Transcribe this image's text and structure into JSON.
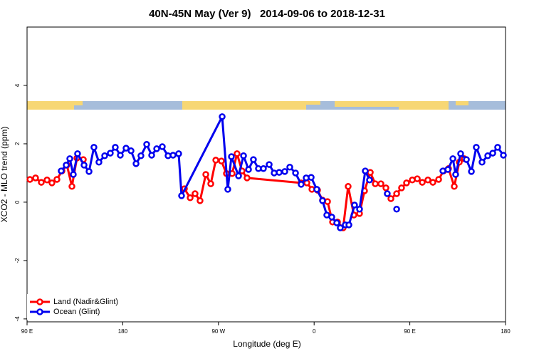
{
  "chart_data": {
    "type": "line",
    "title": "40N-45N May (Ver 9)   2014-09-06 to 2018-12-31",
    "xlabel": "Longitude (deg E)",
    "ylabel": "XCO2 - MLO trend (ppm)",
    "xlim": [
      90,
      540
    ],
    "xticks": [
      {
        "value": 90,
        "label": "90 E"
      },
      180,
      {
        "value": 270,
        "label": "90 W"
      },
      {
        "value": 360,
        "label": "0"
      },
      {
        "value": 450,
        "label": "90 E"
      },
      {
        "value": 540,
        "label": "180"
      }
    ],
    "ylim": [
      -4.1,
      6.0
    ],
    "yticks": [
      -4,
      -2,
      0,
      2,
      4
    ],
    "legend": "bottom-left",
    "series": [
      {
        "name": "Land (Nadir&Glint)",
        "color": "#ff0000",
        "x": [
          92.7,
          98.0,
          103.4,
          108.8,
          113.4,
          118.1,
          122.8,
          127.5,
          132.2,
          136.9,
          142.9,
          150,
          238.0,
          243.4,
          248.0,
          252.7,
          258.1,
          262.8,
          267.5,
          272.8,
          277.5,
          282.9,
          287.5,
          292.2,
          296.9,
          347.8,
          353.2,
          357.9,
          363.2,
          367.9,
          372.6,
          377.3,
          382.0,
          387.3,
          392.0,
          397.4,
          402.7,
          407.4,
          412.8,
          417.5,
          422.8,
          427.5,
          432.2,
          437.6,
          442.2,
          446.9,
          452.3,
          457.0,
          461.7,
          467.0,
          471.7,
          477.1,
          481.7,
          486.4,
          491.8,
          496.5,
          501.2
        ],
        "values": [
          0.78,
          0.83,
          0.68,
          0.76,
          0.66,
          0.78,
          1.07,
          1.27,
          0.54,
          1.51,
          1.46,
          null,
          0.46,
          0.15,
          0.29,
          0.05,
          0.95,
          0.63,
          1.44,
          1.41,
          0.98,
          0.98,
          1.66,
          1.07,
          0.83,
          0.66,
          0.66,
          0.44,
          0.41,
          0.07,
          0.02,
          -0.68,
          -0.68,
          -0.88,
          0.54,
          -0.44,
          -0.39,
          0.39,
          1.02,
          0.63,
          0.63,
          0.49,
          0.12,
          0.29,
          0.49,
          0.66,
          0.76,
          0.8,
          0.68,
          0.76,
          0.68,
          0.78,
          1.07,
          1.15,
          0.54,
          1.37,
          1.49
        ]
      },
      {
        "name": "Ocean (Glint)",
        "color": "#0000ee",
        "x": [
          122.1,
          126.8,
          130.2,
          133.5,
          137.5,
          143.6,
          148.3,
          152.9,
          157.6,
          163.0,
          168.3,
          173.0,
          177.7,
          183.1,
          187.8,
          192.5,
          197.1,
          202.5,
          207.2,
          211.9,
          217.2,
          222.6,
          227.3,
          232.6,
          235.3,
          273.5,
          278.8,
          282.2,
          288.9,
          293.6,
          298.3,
          302.9,
          307.6,
          312.3,
          317.7,
          322.4,
          327.1,
          332.4,
          337.1,
          342.5,
          347.8,
          352.5,
          357.2,
          362.5,
          367.9,
          371.9,
          376.6,
          381.3,
          384.6,
          389.3,
          392.7,
          398.0,
          402.7,
          408.1,
          412.1,
          420,
          428.8,
          432,
          437.6,
          460,
          481.1,
          485.8,
          490.5,
          493.1,
          497.8,
          503.2,
          507.9,
          512.5,
          517.9,
          523.3,
          528.0,
          532.6,
          538.0
        ],
        "values": [
          1.07,
          1.27,
          1.49,
          0.95,
          1.66,
          1.27,
          1.05,
          1.88,
          1.37,
          1.59,
          1.68,
          1.88,
          1.61,
          1.85,
          1.76,
          1.32,
          1.59,
          1.98,
          1.61,
          1.83,
          1.9,
          1.59,
          1.61,
          1.66,
          0.22,
          2.93,
          0.44,
          1.56,
          0.9,
          1.59,
          1.12,
          1.46,
          1.15,
          1.15,
          1.29,
          1.0,
          1.02,
          1.05,
          1.2,
          1.0,
          0.61,
          0.83,
          0.85,
          0.44,
          0.05,
          -0.44,
          -0.51,
          -0.71,
          -0.88,
          -0.78,
          -0.78,
          -0.1,
          -0.24,
          1.07,
          0.76,
          null,
          0.29,
          null,
          -0.24,
          null,
          1.07,
          1.12,
          1.49,
          0.95,
          1.66,
          1.46,
          1.05,
          1.88,
          1.37,
          1.59,
          1.68,
          1.88,
          1.61
        ]
      }
    ]
  }
}
